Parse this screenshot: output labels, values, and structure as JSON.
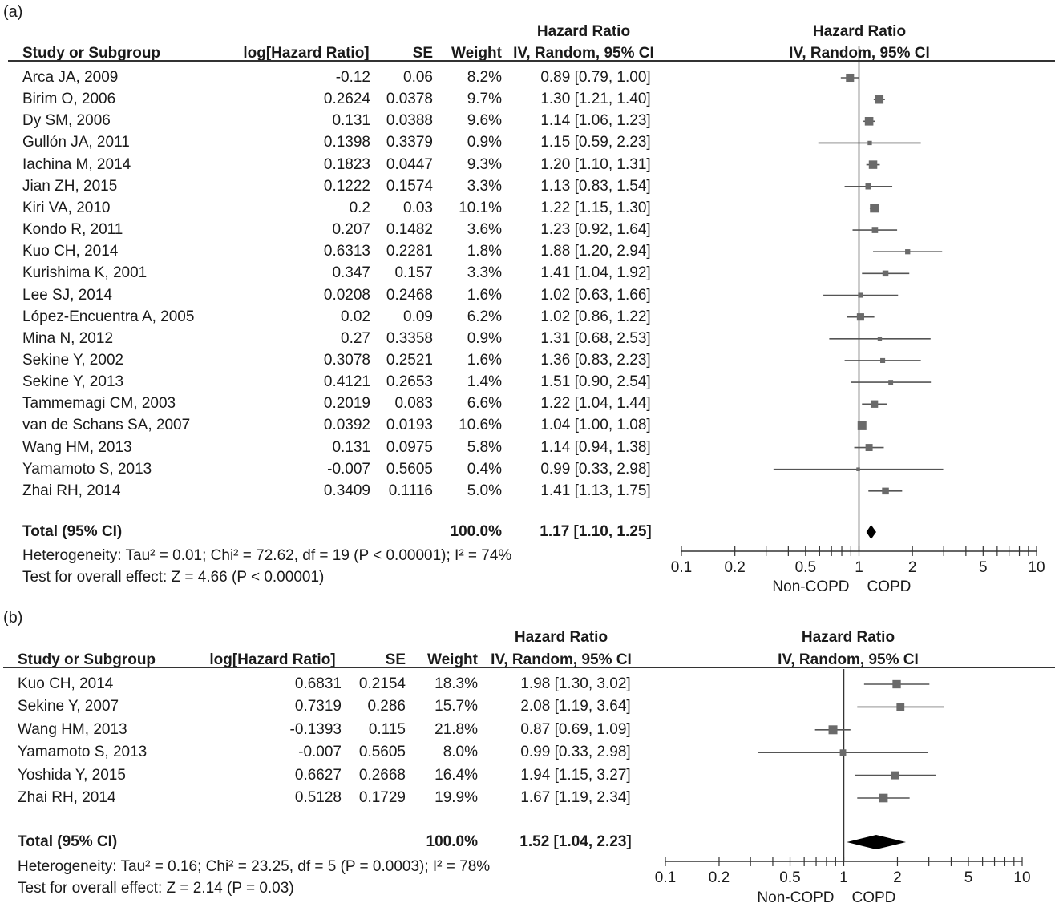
{
  "panels": [
    {
      "label": "(a)",
      "headers": {
        "study": "Study or Subgroup",
        "loghr": "log[Hazard Ratio]",
        "se": "SE",
        "weight": "Weight",
        "hr_top": "Hazard Ratio",
        "hr_sub": "IV, Random, 95% CI",
        "plot_top": "Hazard Ratio",
        "plot_sub": "IV, Random, 95% CI"
      },
      "rows": [
        {
          "study": "Arca JA, 2009",
          "loghr": "-0.12",
          "se": "0.06",
          "weight": "8.2%",
          "ci": "0.89 [0.79, 1.00]"
        },
        {
          "study": "Birim O, 2006",
          "loghr": "0.2624",
          "se": "0.0378",
          "weight": "9.7%",
          "ci": "1.30 [1.21, 1.40]"
        },
        {
          "study": "Dy SM, 2006",
          "loghr": "0.131",
          "se": "0.0388",
          "weight": "9.6%",
          "ci": "1.14 [1.06, 1.23]"
        },
        {
          "study": "Gullón JA, 2011",
          "loghr": "0.1398",
          "se": "0.3379",
          "weight": "0.9%",
          "ci": "1.15 [0.59, 2.23]"
        },
        {
          "study": "Iachina M, 2014",
          "loghr": "0.1823",
          "se": "0.0447",
          "weight": "9.3%",
          "ci": "1.20 [1.10, 1.31]"
        },
        {
          "study": "Jian ZH, 2015",
          "loghr": "0.1222",
          "se": "0.1574",
          "weight": "3.3%",
          "ci": "1.13 [0.83, 1.54]"
        },
        {
          "study": "Kiri VA,  2010",
          "loghr": "0.2",
          "se": "0.03",
          "weight": "10.1%",
          "ci": "1.22 [1.15, 1.30]"
        },
        {
          "study": "Kondo R, 2011",
          "loghr": "0.207",
          "se": "0.1482",
          "weight": "3.6%",
          "ci": "1.23 [0.92, 1.64]"
        },
        {
          "study": "Kuo CH, 2014",
          "loghr": "0.6313",
          "se": "0.2281",
          "weight": "1.8%",
          "ci": "1.88 [1.20, 2.94]"
        },
        {
          "study": "Kurishima K, 2001",
          "loghr": "0.347",
          "se": "0.157",
          "weight": "3.3%",
          "ci": "1.41 [1.04, 1.92]"
        },
        {
          "study": "Lee SJ, 2014",
          "loghr": "0.0208",
          "se": "0.2468",
          "weight": "1.6%",
          "ci": "1.02 [0.63, 1.66]"
        },
        {
          "study": "López-Encuentra A, 2005",
          "loghr": "0.02",
          "se": "0.09",
          "weight": "6.2%",
          "ci": "1.02 [0.86, 1.22]"
        },
        {
          "study": "Mina N, 2012",
          "loghr": "0.27",
          "se": "0.3358",
          "weight": "0.9%",
          "ci": "1.31 [0.68, 2.53]"
        },
        {
          "study": "Sekine Y, 2002",
          "loghr": "0.3078",
          "se": "0.2521",
          "weight": "1.6%",
          "ci": "1.36 [0.83, 2.23]"
        },
        {
          "study": "Sekine Y, 2013",
          "loghr": "0.4121",
          "se": "0.2653",
          "weight": "1.4%",
          "ci": "1.51 [0.90, 2.54]"
        },
        {
          "study": "Tammemagi CM, 2003",
          "loghr": "0.2019",
          "se": "0.083",
          "weight": "6.6%",
          "ci": "1.22 [1.04, 1.44]"
        },
        {
          "study": "van de Schans SA, 2007",
          "loghr": "0.0392",
          "se": "0.0193",
          "weight": "10.6%",
          "ci": "1.04 [1.00, 1.08]"
        },
        {
          "study": "Wang HM, 2013",
          "loghr": "0.131",
          "se": "0.0975",
          "weight": "5.8%",
          "ci": "1.14 [0.94, 1.38]"
        },
        {
          "study": "Yamamoto S, 2013",
          "loghr": "-0.007",
          "se": "0.5605",
          "weight": "0.4%",
          "ci": "0.99 [0.33, 2.98]"
        },
        {
          "study": "Zhai RH, 2014",
          "loghr": "0.3409",
          "se": "0.1116",
          "weight": "5.0%",
          "ci": "1.41 [1.13, 1.75]"
        }
      ],
      "total": {
        "label": "Total (95% CI)",
        "weight": "100.0%",
        "ci": "1.17 [1.10, 1.25]"
      },
      "heterogeneity": "Heterogeneity: Tau² = 0.01; Chi² = 72.62, df = 19 (P < 0.00001); I² = 74%",
      "overall": "Test for overall effect: Z = 4.66 (P < 0.00001)",
      "axis_ticks": [
        "0.1",
        "0.2",
        "0.5",
        "1",
        "2",
        "5",
        "10"
      ],
      "favours_left": "Non-COPD",
      "favours_right": "COPD"
    },
    {
      "label": "(b)",
      "headers": {
        "study": "Study or Subgroup",
        "loghr": "log[Hazard Ratio]",
        "se": "SE",
        "weight": "Weight",
        "hr_top": "Hazard Ratio",
        "hr_sub": "IV, Random, 95% CI",
        "plot_top": "Hazard Ratio",
        "plot_sub": "IV, Random, 95% CI"
      },
      "rows": [
        {
          "study": "Kuo CH, 2014",
          "loghr": "0.6831",
          "se": "0.2154",
          "weight": "18.3%",
          "ci": "1.98 [1.30, 3.02]"
        },
        {
          "study": "Sekine Y, 2007",
          "loghr": "0.7319",
          "se": "0.286",
          "weight": "15.7%",
          "ci": "2.08 [1.19, 3.64]"
        },
        {
          "study": "Wang HM, 2013",
          "loghr": "-0.1393",
          "se": "0.115",
          "weight": "21.8%",
          "ci": "0.87 [0.69, 1.09]"
        },
        {
          "study": "Yamamoto S, 2013",
          "loghr": "-0.007",
          "se": "0.5605",
          "weight": "8.0%",
          "ci": "0.99 [0.33, 2.98]"
        },
        {
          "study": "Yoshida Y, 2015",
          "loghr": "0.6627",
          "se": "0.2668",
          "weight": "16.4%",
          "ci": "1.94 [1.15, 3.27]"
        },
        {
          "study": "Zhai RH, 2014",
          "loghr": "0.5128",
          "se": "0.1729",
          "weight": "19.9%",
          "ci": "1.67 [1.19, 2.34]"
        }
      ],
      "total": {
        "label": "Total (95% CI)",
        "weight": "100.0%",
        "ci": "1.52 [1.04, 2.23]"
      },
      "heterogeneity": "Heterogeneity: Tau² = 0.16; Chi² = 23.25, df = 5 (P = 0.0003); I² = 78%",
      "overall": "Test for overall effect: Z = 2.14 (P = 0.03)",
      "axis_ticks": [
        "0.1",
        "0.2",
        "0.5",
        "1",
        "2",
        "5",
        "10"
      ],
      "favours_left": "Non-COPD",
      "favours_right": "COPD"
    }
  ],
  "chart_data": [
    {
      "type": "forest",
      "panel": "(a)",
      "scale": "log",
      "xlim": [
        0.1,
        10
      ],
      "series": [
        {
          "study": "Arca JA, 2009",
          "hr": 0.89,
          "lo": 0.79,
          "hi": 1.0,
          "weight": 8.2
        },
        {
          "study": "Birim O, 2006",
          "hr": 1.3,
          "lo": 1.21,
          "hi": 1.4,
          "weight": 9.7
        },
        {
          "study": "Dy SM, 2006",
          "hr": 1.14,
          "lo": 1.06,
          "hi": 1.23,
          "weight": 9.6
        },
        {
          "study": "Gullón JA, 2011",
          "hr": 1.15,
          "lo": 0.59,
          "hi": 2.23,
          "weight": 0.9
        },
        {
          "study": "Iachina M, 2014",
          "hr": 1.2,
          "lo": 1.1,
          "hi": 1.31,
          "weight": 9.3
        },
        {
          "study": "Jian ZH, 2015",
          "hr": 1.13,
          "lo": 0.83,
          "hi": 1.54,
          "weight": 3.3
        },
        {
          "study": "Kiri VA,  2010",
          "hr": 1.22,
          "lo": 1.15,
          "hi": 1.3,
          "weight": 10.1
        },
        {
          "study": "Kondo R, 2011",
          "hr": 1.23,
          "lo": 0.92,
          "hi": 1.64,
          "weight": 3.6
        },
        {
          "study": "Kuo CH, 2014",
          "hr": 1.88,
          "lo": 1.2,
          "hi": 2.94,
          "weight": 1.8
        },
        {
          "study": "Kurishima K, 2001",
          "hr": 1.41,
          "lo": 1.04,
          "hi": 1.92,
          "weight": 3.3
        },
        {
          "study": "Lee SJ, 2014",
          "hr": 1.02,
          "lo": 0.63,
          "hi": 1.66,
          "weight": 1.6
        },
        {
          "study": "López-Encuentra A, 2005",
          "hr": 1.02,
          "lo": 0.86,
          "hi": 1.22,
          "weight": 6.2
        },
        {
          "study": "Mina N, 2012",
          "hr": 1.31,
          "lo": 0.68,
          "hi": 2.53,
          "weight": 0.9
        },
        {
          "study": "Sekine Y, 2002",
          "hr": 1.36,
          "lo": 0.83,
          "hi": 2.23,
          "weight": 1.6
        },
        {
          "study": "Sekine Y, 2013",
          "hr": 1.51,
          "lo": 0.9,
          "hi": 2.54,
          "weight": 1.4
        },
        {
          "study": "Tammemagi CM, 2003",
          "hr": 1.22,
          "lo": 1.04,
          "hi": 1.44,
          "weight": 6.6
        },
        {
          "study": "van de Schans SA, 2007",
          "hr": 1.04,
          "lo": 1.0,
          "hi": 1.08,
          "weight": 10.6
        },
        {
          "study": "Wang HM, 2013",
          "hr": 1.14,
          "lo": 0.94,
          "hi": 1.38,
          "weight": 5.8
        },
        {
          "study": "Yamamoto S, 2013",
          "hr": 0.99,
          "lo": 0.33,
          "hi": 2.98,
          "weight": 0.4
        },
        {
          "study": "Zhai RH, 2014",
          "hr": 1.41,
          "lo": 1.13,
          "hi": 1.75,
          "weight": 5.0
        }
      ],
      "pooled": {
        "hr": 1.17,
        "lo": 1.1,
        "hi": 1.25
      }
    },
    {
      "type": "forest",
      "panel": "(b)",
      "scale": "log",
      "xlim": [
        0.1,
        10
      ],
      "series": [
        {
          "study": "Kuo CH, 2014",
          "hr": 1.98,
          "lo": 1.3,
          "hi": 3.02,
          "weight": 18.3
        },
        {
          "study": "Sekine Y, 2007",
          "hr": 2.08,
          "lo": 1.19,
          "hi": 3.64,
          "weight": 15.7
        },
        {
          "study": "Wang HM, 2013",
          "hr": 0.87,
          "lo": 0.69,
          "hi": 1.09,
          "weight": 21.8
        },
        {
          "study": "Yamamoto S, 2013",
          "hr": 0.99,
          "lo": 0.33,
          "hi": 2.98,
          "weight": 8.0
        },
        {
          "study": "Yoshida Y, 2015",
          "hr": 1.94,
          "lo": 1.15,
          "hi": 3.27,
          "weight": 16.4
        },
        {
          "study": "Zhai RH, 2014",
          "hr": 1.67,
          "lo": 1.19,
          "hi": 2.34,
          "weight": 19.9
        }
      ],
      "pooled": {
        "hr": 1.52,
        "lo": 1.04,
        "hi": 2.23
      }
    }
  ]
}
